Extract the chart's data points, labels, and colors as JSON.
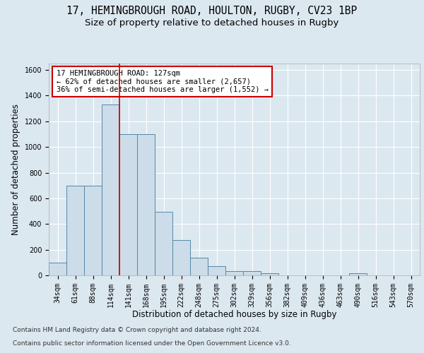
{
  "title_line1": "17, HEMINGBROUGH ROAD, HOULTON, RUGBY, CV23 1BP",
  "title_line2": "Size of property relative to detached houses in Rugby",
  "xlabel": "Distribution of detached houses by size in Rugby",
  "ylabel": "Number of detached properties",
  "footer_line1": "Contains HM Land Registry data © Crown copyright and database right 2024.",
  "footer_line2": "Contains public sector information licensed under the Open Government Licence v3.0.",
  "bin_labels": [
    "34sqm",
    "61sqm",
    "88sqm",
    "114sqm",
    "141sqm",
    "168sqm",
    "195sqm",
    "222sqm",
    "248sqm",
    "275sqm",
    "302sqm",
    "329sqm",
    "356sqm",
    "382sqm",
    "409sqm",
    "436sqm",
    "463sqm",
    "490sqm",
    "516sqm",
    "543sqm",
    "570sqm"
  ],
  "bar_values": [
    97,
    697,
    697,
    1330,
    1100,
    1100,
    497,
    275,
    138,
    71,
    33,
    33,
    15,
    0,
    0,
    0,
    0,
    15,
    0,
    0,
    0
  ],
  "bar_color": "#ccdce8",
  "bar_edge_color": "#5588aa",
  "vline_x": 3.5,
  "vline_color": "#cc0000",
  "annotation_text": "17 HEMINGBROUGH ROAD: 127sqm\n← 62% of detached houses are smaller (2,657)\n36% of semi-detached houses are larger (1,552) →",
  "annotation_box_color": "#ffffff",
  "annotation_box_edge": "#cc0000",
  "ylim": [
    0,
    1650
  ],
  "yticks": [
    0,
    200,
    400,
    600,
    800,
    1000,
    1200,
    1400,
    1600
  ],
  "background_color": "#dce8f0",
  "grid_color": "#ffffff",
  "title_fontsize": 10.5,
  "subtitle_fontsize": 9.5,
  "axis_label_fontsize": 8.5,
  "tick_fontsize": 7,
  "footer_fontsize": 6.5,
  "annotation_fontsize": 7.5
}
